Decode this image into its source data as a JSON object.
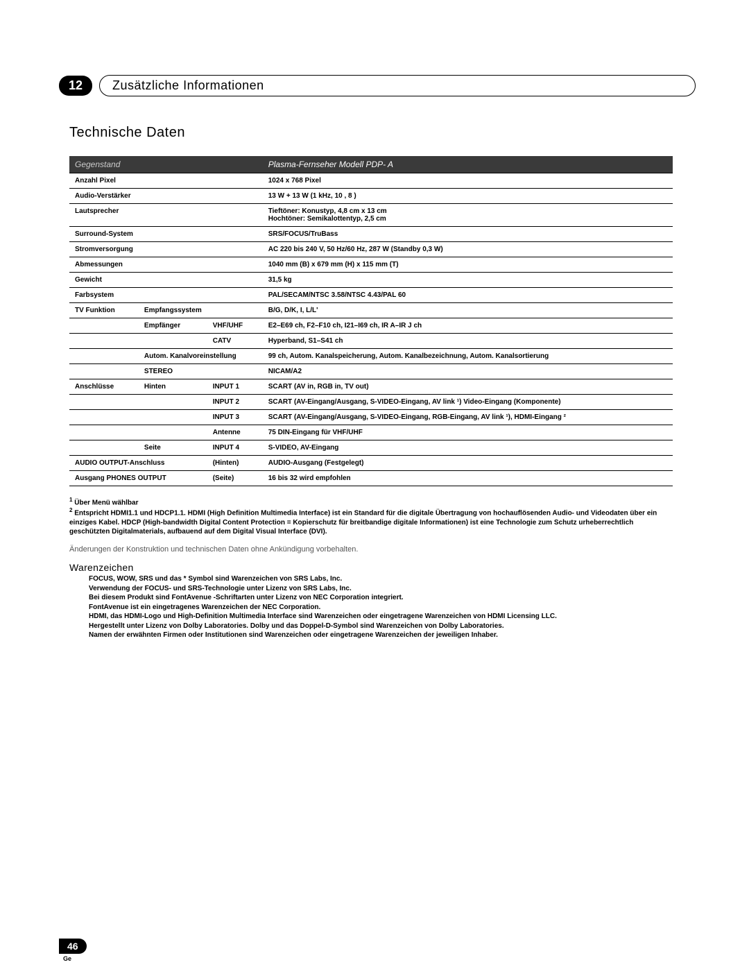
{
  "chapter": {
    "number": "12",
    "title": "Zusätzliche Informationen"
  },
  "section_title": "Technische Daten",
  "table": {
    "header": {
      "left": "Gegenstand",
      "right": "Plasma-Fernseher Modell PDP-       A"
    },
    "rows": [
      {
        "c1": "Anzahl Pixel",
        "c4": "1024 x 768 Pixel"
      },
      {
        "c1": "Audio-Verstärker",
        "c4": "13 W + 13 W (1 kHz, 10   , 8   )"
      },
      {
        "c1": "Lautsprecher",
        "c4": "Tieftöner: Konustyp, 4,8 cm x 13 cm\nHochtöner: Semikalottentyp, 2,5 cm"
      },
      {
        "c1": "Surround-System",
        "c4": "SRS/FOCUS/TruBass"
      },
      {
        "c1": "Stromversorgung",
        "c4": "AC 220 bis 240 V, 50 Hz/60 Hz, 287 W (Standby 0,3 W)"
      },
      {
        "c1": "Abmessungen",
        "c4": "1040 mm (B) x 679 mm (H) x 115 mm (T)"
      },
      {
        "c1": "Gewicht",
        "c4": "31,5 kg"
      },
      {
        "c1": "Farbsystem",
        "c4": "PAL/SECAM/NTSC 3.58/NTSC 4.43/PAL 60"
      },
      {
        "c1": "TV Funktion",
        "c2": "Empfangssystem",
        "c4": "B/G, D/K, I, L/L'"
      },
      {
        "c2": "Empfänger",
        "c3": "VHF/UHF",
        "c4": "E2–E69 ch, F2–F10 ch, I21–I69 ch, IR A–IR J ch"
      },
      {
        "c3": "CATV",
        "c4": "Hyperband, S1–S41 ch"
      },
      {
        "c2": "Autom. Kanalvoreinstellung",
        "colspan23": true,
        "c4": "99 ch, Autom. Kanalspeicherung, Autom. Kanalbezeichnung, Autom. Kanalsortierung"
      },
      {
        "c2": "STEREO",
        "colspan23": true,
        "c4": "NICAM/A2"
      },
      {
        "c1": "Anschlüsse",
        "c2": "Hinten",
        "c3": "INPUT 1",
        "c4": "SCART (AV in, RGB in, TV out)"
      },
      {
        "c3": "INPUT 2",
        "c4": "SCART (AV-Eingang/Ausgang, S-VIDEO-Eingang, AV link ¹) Video-Eingang (Komponente)"
      },
      {
        "c3": "INPUT 3",
        "c4": "SCART (AV-Eingang/Ausgang, S-VIDEO-Eingang, RGB-Eingang, AV link ¹), HDMI-Eingang ²"
      },
      {
        "c3": "Antenne",
        "c4": "75    DIN-Eingang für VHF/UHF"
      },
      {
        "c2": "Seite",
        "c3": "INPUT 4",
        "c4": "S-VIDEO, AV-Eingang"
      },
      {
        "c1": "AUDIO OUTPUT-Anschluss",
        "colspan12": true,
        "c3": "(Hinten)",
        "c4": "AUDIO-Ausgang (Festgelegt)"
      },
      {
        "c1": "Ausgang PHONES OUTPUT",
        "colspan12": true,
        "c3": "(Seite)",
        "c4": "16    bis 32    wird empfohlen"
      }
    ]
  },
  "footnotes": {
    "f1": "Über Menü wählbar",
    "f2": "Entspricht HDMI1.1 und HDCP1.1. HDMI (High Definition Multimedia Interface) ist ein Standard für die digitale Übertragung von hochauflösenden Audio- und Videodaten über ein einziges Kabel. HDCP (High-bandwidth Digital Content Protection = Kopierschutz für breitbandige digitale Informationen) ist eine Technologie zum Schutz urheberrechtlich geschützten Digitalmaterials, aufbauend auf dem Digital Visual Interface (DVI)."
  },
  "change_note": "Änderungen der Konstruktion und technischen Daten ohne Ankündigung vorbehalten.",
  "trademark": {
    "title": "Warenzeichen",
    "lines": [
      "FOCUS, WOW, SRS und das  *       Symbol sind Warenzeichen von SRS Labs, Inc.",
      "Verwendung der FOCUS- und SRS-Technologie unter Lizenz von SRS Labs, Inc.",
      "Bei diesem Produkt sind FontAvenue   -Schriftarten unter Lizenz von NEC Corporation integriert.",
      "FontAvenue ist ein eingetragenes Warenzeichen der NEC Corporation.",
      "HDMI, das HDMI-Logo und High-Definition Multimedia Interface sind Warenzeichen oder eingetragene Warenzeichen von HDMI Licensing LLC.",
      "Hergestellt unter Lizenz von Dolby Laboratories.  Dolby  und das Doppel-D-Symbol sind Warenzeichen von Dolby Laboratories.",
      "Namen der erwähnten Firmen oder Institutionen sind Warenzeichen oder eingetragene Warenzeichen der jeweiligen Inhaber."
    ]
  },
  "footer": {
    "page": "46",
    "lang": "Ge"
  }
}
